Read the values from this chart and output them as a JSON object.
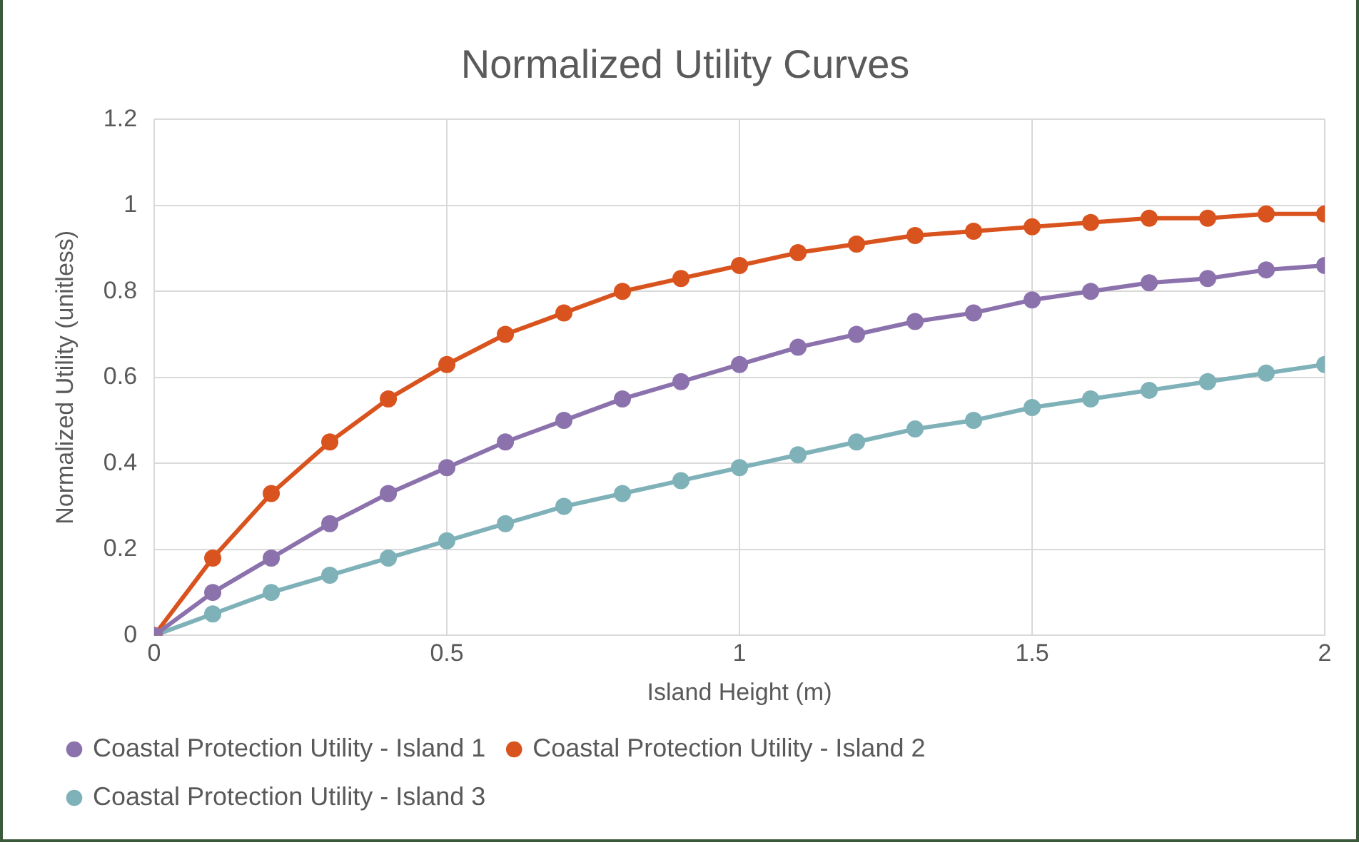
{
  "chart_data": {
    "type": "line",
    "title": "Normalized Utility Curves",
    "xlabel": "Island Height (m)",
    "ylabel": "Normalized Utility (unitless)",
    "x": [
      0,
      0.1,
      0.2,
      0.3,
      0.4,
      0.5,
      0.6,
      0.7,
      0.8,
      0.9,
      1,
      1.1,
      1.2,
      1.3,
      1.4,
      1.5,
      1.6,
      1.7,
      1.8,
      1.9,
      2
    ],
    "series": [
      {
        "name": "Coastal Protection Utility - Island 1",
        "color": "#8c72ad",
        "values": [
          0,
          0.1,
          0.18,
          0.26,
          0.33,
          0.39,
          0.45,
          0.5,
          0.55,
          0.59,
          0.63,
          0.67,
          0.7,
          0.73,
          0.75,
          0.78,
          0.8,
          0.82,
          0.83,
          0.85,
          0.86
        ]
      },
      {
        "name": "Coastal Protection Utility - Island 2",
        "color": "#d9531e",
        "values": [
          0,
          0.18,
          0.33,
          0.45,
          0.55,
          0.63,
          0.7,
          0.75,
          0.8,
          0.83,
          0.86,
          0.89,
          0.91,
          0.93,
          0.94,
          0.95,
          0.96,
          0.97,
          0.97,
          0.98,
          0.98
        ]
      },
      {
        "name": "Coastal Protection Utility - Island 3",
        "color": "#7fb1b9",
        "values": [
          0,
          0.05,
          0.1,
          0.14,
          0.18,
          0.22,
          0.26,
          0.3,
          0.33,
          0.36,
          0.39,
          0.42,
          0.45,
          0.48,
          0.5,
          0.53,
          0.55,
          0.57,
          0.59,
          0.61,
          0.63
        ]
      }
    ],
    "xlim": [
      0,
      2
    ],
    "xticks": [
      0,
      0.5,
      1,
      1.5,
      2
    ],
    "ylim": [
      0,
      1.2
    ],
    "yticks": [
      0,
      0.2,
      0.4,
      0.6,
      0.8,
      1,
      1.2
    ],
    "grid": true,
    "legend": "bottom",
    "marker": "circle",
    "line_style": "solid"
  }
}
